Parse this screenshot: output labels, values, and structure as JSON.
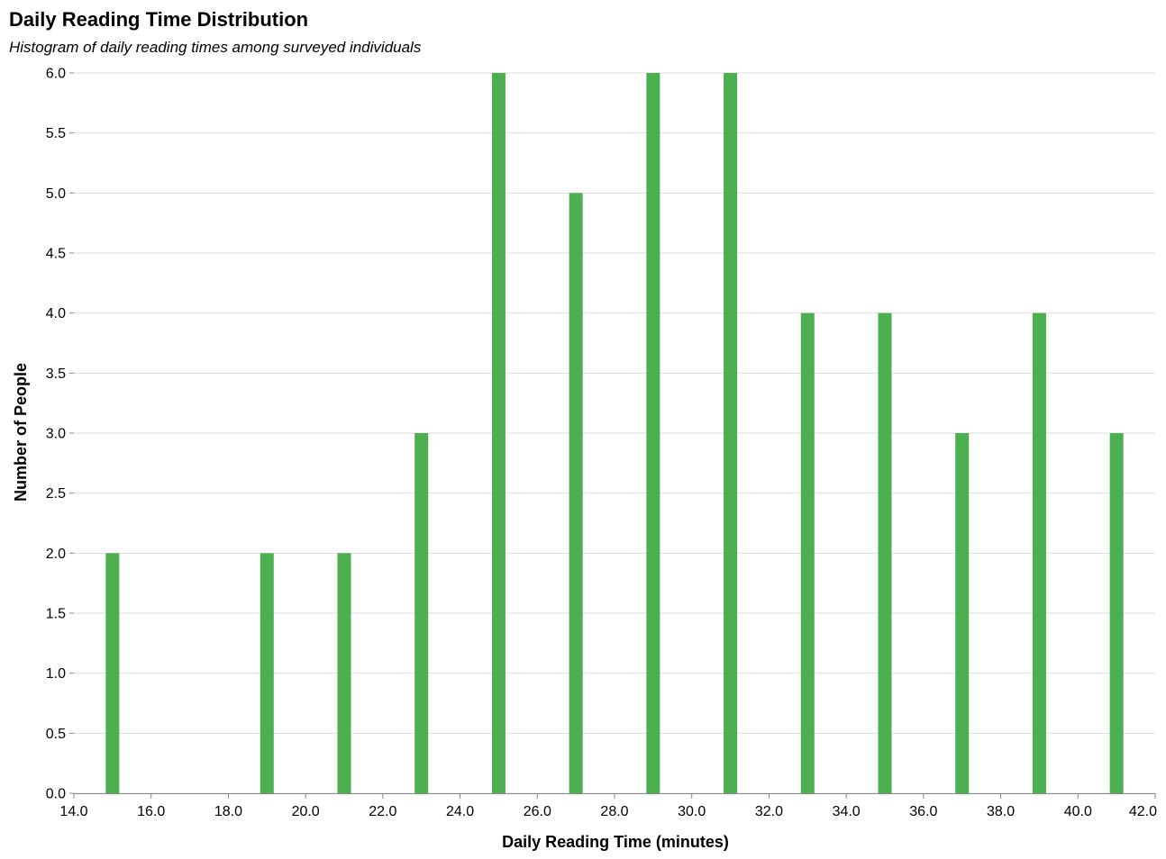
{
  "chart_data": {
    "type": "bar",
    "title": "Daily Reading Time Distribution",
    "subtitle": "Histogram of daily reading times among surveyed individuals",
    "xlabel": "Daily Reading Time (minutes)",
    "ylabel": "Number of People",
    "x": [
      15,
      19,
      21,
      23,
      25,
      27,
      29,
      31,
      33,
      35,
      37,
      39,
      41
    ],
    "values": [
      2,
      2,
      2,
      3,
      6,
      5,
      6,
      6,
      4,
      4,
      3,
      4,
      3
    ],
    "xlim": [
      14,
      42
    ],
    "ylim": [
      0,
      6
    ],
    "x_ticks": [
      "14.0",
      "16.0",
      "18.0",
      "20.0",
      "22.0",
      "24.0",
      "26.0",
      "28.0",
      "30.0",
      "32.0",
      "34.0",
      "36.0",
      "38.0",
      "40.0",
      "42.0"
    ],
    "y_ticks": [
      "0.0",
      "0.5",
      "1.0",
      "1.5",
      "2.0",
      "2.5",
      "3.0",
      "3.5",
      "4.0",
      "4.5",
      "5.0",
      "5.5",
      "6.0"
    ],
    "bar_width_units": 0.35,
    "grid": true,
    "legend": "none",
    "bar_color": "#4caf50"
  }
}
